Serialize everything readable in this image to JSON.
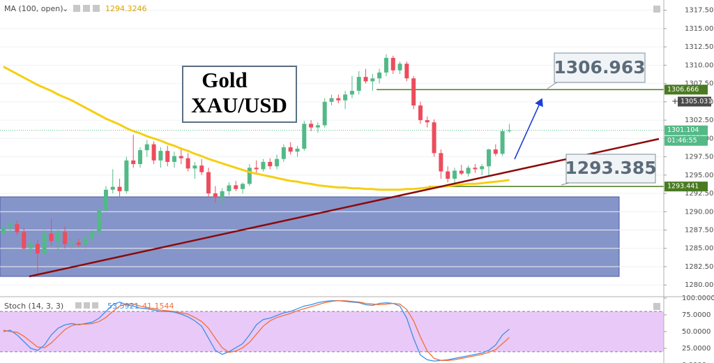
{
  "chart_data": [
    {
      "type": "candlestick",
      "indicator": {
        "name": "MA (100, open)",
        "color": "#f5cf12",
        "values": [
          1309.8,
          1309.3,
          1308.8,
          1308.3,
          1307.8,
          1307.3,
          1306.9,
          1306.5,
          1306.0,
          1305.6,
          1305.2,
          1304.7,
          1304.2,
          1303.7,
          1303.2,
          1302.7,
          1302.3,
          1301.9,
          1301.4,
          1301.0,
          1300.7,
          1300.3,
          1300.0,
          1299.7,
          1299.3,
          1299.0,
          1298.6,
          1298.3,
          1297.9,
          1297.6,
          1297.2,
          1296.9,
          1296.6,
          1296.3,
          1296.0,
          1295.7,
          1295.4,
          1295.2,
          1295.0,
          1294.8,
          1294.6,
          1294.4,
          1294.2,
          1294.1,
          1293.9,
          1293.8,
          1293.6,
          1293.5,
          1293.4,
          1293.3,
          1293.3,
          1293.2,
          1293.2,
          1293.1,
          1293.1,
          1293.0,
          1293.0,
          1293.0,
          1293.0,
          1293.1,
          1293.1,
          1293.2,
          1293.3,
          1293.4,
          1293.4,
          1293.5,
          1293.6,
          1293.7,
          1293.8,
          1293.8,
          1293.9,
          1294.0,
          1294.1,
          1294.2,
          1294.3246
        ]
      },
      "open": [
        1287.0,
        1287.8,
        1288.3,
        1287.2,
        1285.0,
        1285.6,
        1284.3,
        1287.0,
        1286.0,
        1287.2,
        1285.6,
        1285.8,
        1285.5,
        1286.4,
        1287.2,
        1290.2,
        1293.0,
        1293.4,
        1292.8,
        1297.0,
        1296.5,
        1298.4,
        1299.2,
        1297.0,
        1298.3,
        1296.8,
        1297.6,
        1297.3,
        1295.9,
        1296.3,
        1295.4,
        1292.5,
        1292.0,
        1292.8,
        1293.6,
        1293.1,
        1293.8,
        1296.0,
        1295.8,
        1296.8,
        1296.2,
        1297.2,
        1298.8,
        1298.2,
        1298.6,
        1302.0,
        1301.5,
        1301.8,
        1305.0,
        1305.5,
        1305.2,
        1306.0,
        1306.5,
        1308.4,
        1307.8,
        1308.2,
        1309.0,
        1311.0,
        1309.3,
        1310.2,
        1308.2,
        1304.5,
        1302.5,
        1302.2,
        1298.0,
        1295.5,
        1294.5,
        1295.6,
        1295.2,
        1296.0,
        1295.8,
        1296.2,
        1298.5,
        1297.9,
        1301.0
      ],
      "high": [
        1288.2,
        1289.0,
        1288.8,
        1287.8,
        1286.0,
        1286.2,
        1287.5,
        1289.0,
        1287.5,
        1288.0,
        1286.5,
        1286.3,
        1286.8,
        1287.5,
        1290.5,
        1293.5,
        1295.8,
        1294.5,
        1297.5,
        1300.5,
        1298.8,
        1299.8,
        1299.6,
        1298.8,
        1299.0,
        1298.2,
        1298.8,
        1298.0,
        1296.8,
        1297.2,
        1296.0,
        1293.5,
        1293.2,
        1294.0,
        1294.2,
        1294.0,
        1296.5,
        1297.0,
        1297.2,
        1297.3,
        1297.8,
        1299.2,
        1299.5,
        1299.0,
        1302.4,
        1302.5,
        1302.2,
        1305.5,
        1306.0,
        1306.0,
        1306.5,
        1308.5,
        1309.2,
        1309.5,
        1308.8,
        1309.5,
        1311.5,
        1311.3,
        1310.5,
        1310.5,
        1308.5,
        1305.0,
        1303.0,
        1302.6,
        1298.5,
        1296.2,
        1296.0,
        1296.4,
        1296.3,
        1296.5,
        1296.5,
        1298.6,
        1299.2,
        1301.3,
        1302.0
      ],
      "low": [
        1286.5,
        1287.0,
        1286.8,
        1284.8,
        1284.2,
        1281.5,
        1284.0,
        1285.5,
        1284.5,
        1285.0,
        1285.0,
        1285.2,
        1285.0,
        1286.0,
        1287.0,
        1290.0,
        1292.5,
        1292.0,
        1292.5,
        1296.0,
        1296.0,
        1297.5,
        1296.5,
        1296.0,
        1296.2,
        1296.0,
        1296.5,
        1295.5,
        1294.5,
        1295.0,
        1292.0,
        1291.2,
        1291.0,
        1292.2,
        1292.8,
        1292.5,
        1293.5,
        1295.2,
        1295.5,
        1295.8,
        1295.8,
        1296.8,
        1297.8,
        1297.5,
        1298.3,
        1301.0,
        1300.8,
        1301.5,
        1304.5,
        1304.8,
        1304.0,
        1305.5,
        1306.0,
        1307.5,
        1306.5,
        1307.5,
        1308.5,
        1308.8,
        1308.8,
        1307.8,
        1304.0,
        1302.0,
        1301.5,
        1297.5,
        1294.5,
        1294.0,
        1293.5,
        1295.0,
        1294.8,
        1295.3,
        1295.0,
        1294.8,
        1297.6,
        1297.6,
        1300.8
      ],
      "close": [
        1287.8,
        1288.3,
        1287.2,
        1285.0,
        1285.6,
        1284.3,
        1287.0,
        1286.0,
        1287.2,
        1285.6,
        1285.8,
        1285.5,
        1286.4,
        1287.2,
        1290.2,
        1293.0,
        1293.4,
        1292.8,
        1297.0,
        1296.5,
        1298.4,
        1299.2,
        1297.0,
        1298.3,
        1296.8,
        1297.6,
        1297.3,
        1295.9,
        1296.3,
        1295.4,
        1292.5,
        1292.0,
        1292.8,
        1293.6,
        1293.1,
        1293.8,
        1296.0,
        1295.8,
        1296.8,
        1296.2,
        1297.2,
        1298.8,
        1298.2,
        1298.6,
        1302.0,
        1301.5,
        1301.8,
        1305.0,
        1305.5,
        1305.2,
        1306.0,
        1306.5,
        1308.4,
        1307.8,
        1308.2,
        1309.0,
        1311.0,
        1309.3,
        1310.2,
        1308.2,
        1304.5,
        1302.5,
        1302.2,
        1298.0,
        1295.5,
        1294.5,
        1295.6,
        1295.2,
        1296.0,
        1295.8,
        1296.2,
        1298.5,
        1297.9,
        1301.0,
        1301.104
      ],
      "up_color": "#53b987",
      "down_color": "#eb4d5c",
      "xlim": [
        -0.5,
        96.6
      ],
      "ylim": [
        1278.4,
        1318.9
      ],
      "yticks": [
        {
          "value": 1280,
          "label": "1280.000"
        },
        {
          "value": 1282.5,
          "label": "1282.500"
        },
        {
          "value": 1285,
          "label": "1285.000"
        },
        {
          "value": 1287.5,
          "label": "1287.500"
        },
        {
          "value": 1290,
          "label": "1290.000"
        },
        {
          "value": 1292.5,
          "label": "1292.500"
        },
        {
          "value": 1295,
          "label": "1295.000"
        },
        {
          "value": 1297.5,
          "label": "1297.500"
        },
        {
          "value": 1300,
          "label": "1300.000"
        },
        {
          "value": 1302.5,
          "label": "1302.500"
        },
        {
          "value": 1305,
          "label": "1305.000"
        },
        {
          "value": 1307.5,
          "label": "1307.500"
        },
        {
          "value": 1310,
          "label": "1310.000"
        },
        {
          "value": 1312.5,
          "label": "1312.500"
        },
        {
          "value": 1315,
          "label": "1315.000"
        },
        {
          "value": 1317.5,
          "label": "1317.500"
        }
      ],
      "levels": [
        {
          "value": 1306.666,
          "color": "#4a7a22"
        },
        {
          "value": 1293.441,
          "color": "#4a7a22"
        }
      ],
      "crosshair": 1305.031,
      "countdown": "01:46:55",
      "annotations": {
        "title_lines": [
          "Gold",
          "XAU/USD"
        ],
        "callouts": [
          1306.963,
          1293.385
        ]
      }
    },
    {
      "type": "stochastic",
      "title": "Stoch (14, 3, 3)",
      "series": [
        {
          "name": "%K",
          "color": "#3c8ee8",
          "values": [
            50,
            52,
            45,
            35,
            25,
            22,
            30,
            45,
            55,
            60,
            62,
            60,
            62,
            64,
            70,
            80,
            90,
            94,
            90,
            88,
            85,
            84,
            82,
            80,
            80,
            79,
            76,
            72,
            66,
            58,
            40,
            22,
            16,
            20,
            26,
            32,
            45,
            60,
            68,
            70,
            74,
            78,
            80,
            84,
            88,
            90,
            93,
            95,
            96,
            96,
            95,
            94,
            93,
            90,
            89,
            92,
            93,
            92,
            88,
            70,
            40,
            15,
            8,
            6,
            7,
            8,
            10,
            12,
            14,
            16,
            18,
            22,
            30,
            45,
            53.5921
          ]
        },
        {
          "name": "%D",
          "color": "#f0703a",
          "values": [
            52,
            50,
            49,
            43,
            35,
            27,
            26,
            33,
            43,
            53,
            59,
            61,
            61,
            62,
            65,
            71,
            80,
            88,
            91,
            91,
            88,
            86,
            84,
            82,
            81,
            80,
            78,
            76,
            71,
            65,
            55,
            40,
            26,
            19,
            21,
            26,
            34,
            46,
            58,
            66,
            71,
            74,
            77,
            81,
            84,
            87,
            90,
            93,
            95,
            96,
            96,
            95,
            94,
            92,
            91,
            90,
            91,
            92,
            91,
            83,
            66,
            42,
            21,
            10,
            7,
            7,
            8,
            10,
            12,
            14,
            16,
            19,
            23,
            32,
            41.1544
          ]
        }
      ],
      "band": [
        20,
        80
      ],
      "band_color": "#e9c9f7",
      "ylim": [
        -1,
        102
      ],
      "yticks": [
        {
          "value": 0,
          "label": "0.0000"
        },
        {
          "value": 25,
          "label": "25.0000"
        },
        {
          "value": 50,
          "label": "50.0000"
        },
        {
          "value": 75,
          "label": "75.0000"
        },
        {
          "value": 100,
          "label": "100.0000"
        }
      ]
    }
  ]
}
